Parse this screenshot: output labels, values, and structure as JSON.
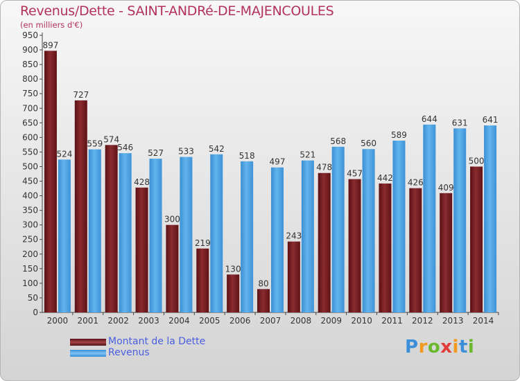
{
  "title": "Revenus/Dette - SAINT-ANDRé-DE-MAJENCOULES",
  "subtitle": "(en milliers d'€)",
  "brand": {
    "letters": [
      "P",
      "r",
      "o",
      "x",
      "i",
      "t",
      "i"
    ],
    "colors": [
      "#3b8fd9",
      "#f29a1f",
      "#69b82e",
      "#e23b3b",
      "#f29a1f",
      "#3b8fd9",
      "#69b82e"
    ]
  },
  "legend": {
    "items": [
      {
        "label": "Montant de la Dette",
        "color": "#7a1f24"
      },
      {
        "label": "Revenus",
        "color": "#4ea6e6"
      }
    ]
  },
  "chart_data": {
    "type": "bar",
    "title": "Revenus/Dette - SAINT-ANDRé-DE-MAJENCOULES",
    "ylabel": "(en milliers d'€)",
    "categories": [
      "2000",
      "2001",
      "2002",
      "2003",
      "2004",
      "2005",
      "2006",
      "2007",
      "2008",
      "2009",
      "2010",
      "2011",
      "2012",
      "2013",
      "2014"
    ],
    "series": [
      {
        "name": "Montant de la Dette",
        "color": "#7a1f24",
        "values": [
          897,
          727,
          574,
          428,
          300,
          219,
          130,
          80,
          243,
          478,
          457,
          442,
          426,
          409,
          500
        ]
      },
      {
        "name": "Revenus",
        "color": "#4ea6e6",
        "values": [
          524,
          559,
          546,
          527,
          533,
          542,
          518,
          497,
          521,
          568,
          560,
          589,
          644,
          631,
          641
        ]
      }
    ],
    "ylim": [
      0,
      950
    ],
    "ytick_step": 50,
    "grid": false,
    "legend_position": "bottom-left"
  }
}
